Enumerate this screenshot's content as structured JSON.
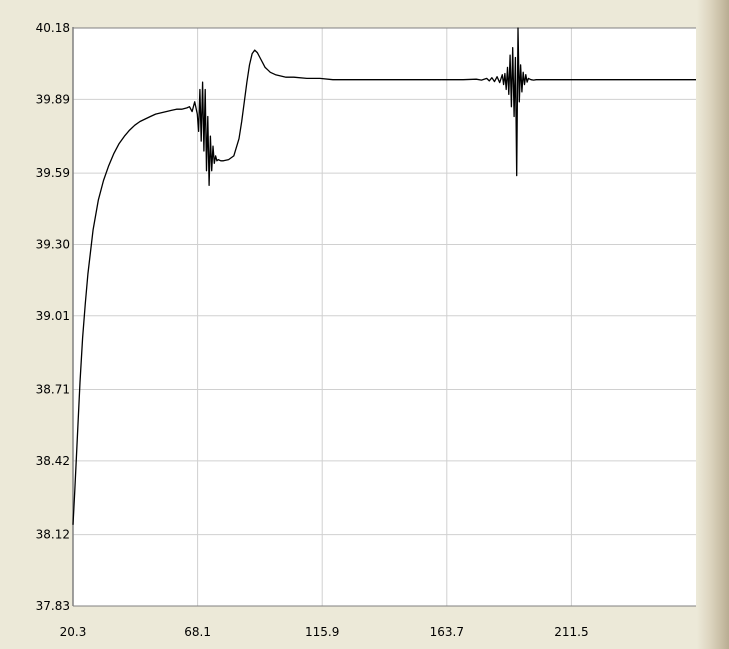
{
  "chart_data": {
    "type": "line",
    "title": "",
    "xlabel": "",
    "ylabel": "",
    "xlim": [
      20.3,
      259.3
    ],
    "ylim": [
      37.83,
      40.18
    ],
    "grid": true,
    "legend": "none",
    "x_ticks": [
      "20.3",
      "68.1",
      "115.9",
      "163.7",
      "211.5"
    ],
    "y_ticks": [
      "40.18",
      "39.89",
      "39.59",
      "39.30",
      "39.01",
      "38.71",
      "38.42",
      "38.12",
      "37.83"
    ],
    "colors": {
      "plot_background": "#ffffff",
      "frame_background": "#ece9d8",
      "grid": "#d0d0d0",
      "axis": "#808080",
      "line": "#000000"
    },
    "series": [
      {
        "x": [
          20.3,
          21.0,
          22.0,
          23.0,
          24.0,
          25.0,
          26.0,
          28.0,
          30.0,
          32.0,
          34.0,
          36.0,
          38.0,
          40.0,
          42.0,
          44.0,
          46.0,
          48.0,
          50.0,
          52.0,
          54.0,
          56.0,
          58.0,
          60.0,
          62.0,
          64.0,
          65.0,
          66.0,
          67.0,
          68.0,
          68.5,
          69.0,
          69.5,
          70.0,
          70.5,
          71.0,
          71.5,
          72.0,
          72.5,
          73.0,
          73.5,
          74.0,
          74.5,
          75.0,
          75.5,
          76.0,
          77.0,
          78.0,
          80.0,
          82.0,
          84.0,
          85.0,
          86.0,
          87.0,
          88.0,
          89.0,
          90.0,
          91.0,
          92.0,
          93.0,
          94.0,
          95.0,
          96.0,
          98.0,
          100.0,
          102.0,
          105.0,
          110.0,
          115.0,
          120.0,
          130.0,
          140.0,
          145.0,
          150.0,
          160.0,
          170.0,
          175.0,
          177.0,
          179.0,
          180.0,
          181.0,
          182.0,
          183.0,
          184.0,
          185.0,
          185.5,
          186.0,
          186.5,
          187.0,
          187.5,
          188.0,
          188.5,
          189.0,
          189.5,
          190.0,
          190.5,
          191.0,
          191.5,
          192.0,
          192.5,
          193.0,
          193.5,
          194.0,
          194.5,
          195.0,
          196.0,
          197.0,
          198.0,
          200.0,
          210.0,
          230.0,
          259.3
        ],
        "values": [
          38.16,
          38.3,
          38.52,
          38.74,
          38.92,
          39.06,
          39.18,
          39.36,
          39.48,
          39.56,
          39.62,
          39.67,
          39.71,
          39.74,
          39.765,
          39.785,
          39.8,
          39.81,
          39.82,
          39.83,
          39.835,
          39.84,
          39.845,
          39.85,
          39.85,
          39.855,
          39.86,
          39.84,
          39.88,
          39.83,
          39.76,
          39.93,
          39.72,
          39.96,
          39.68,
          39.93,
          39.6,
          39.82,
          39.54,
          39.74,
          39.6,
          39.7,
          39.63,
          39.66,
          39.64,
          39.645,
          39.64,
          39.64,
          39.645,
          39.66,
          39.73,
          39.8,
          39.88,
          39.96,
          40.03,
          40.075,
          40.09,
          40.08,
          40.06,
          40.04,
          40.02,
          40.01,
          40.0,
          39.99,
          39.985,
          39.98,
          39.98,
          39.975,
          39.975,
          39.97,
          39.97,
          39.97,
          39.97,
          39.97,
          39.97,
          39.97,
          39.972,
          39.968,
          39.975,
          39.965,
          39.978,
          39.962,
          39.982,
          39.958,
          39.99,
          39.95,
          39.995,
          39.93,
          40.02,
          39.91,
          40.07,
          39.86,
          40.1,
          39.82,
          40.06,
          39.58,
          40.18,
          39.88,
          40.03,
          39.92,
          40.0,
          39.95,
          39.99,
          39.96,
          39.975,
          39.97,
          39.968,
          39.97,
          39.97,
          39.97,
          39.97,
          39.97
        ]
      }
    ]
  }
}
